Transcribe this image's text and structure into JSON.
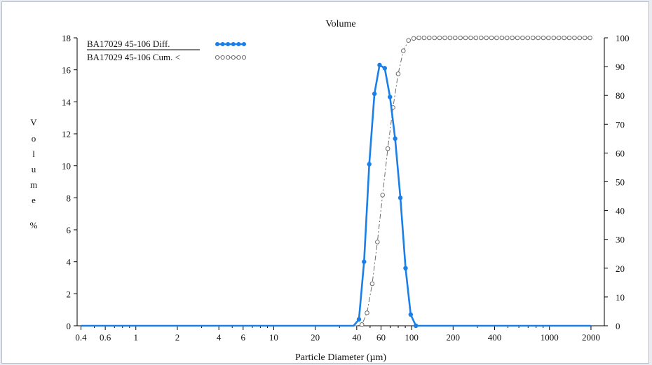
{
  "colors": {
    "diff_series": "#1a7fe6",
    "cum_series": "#6b6b6b",
    "axis": "#000000",
    "frame_border": "#b5bcc8",
    "background_outer": "#e9ecf1"
  },
  "chart_data": {
    "type": "line",
    "title": "Volume",
    "xlabel": "Particle Diameter (µm)",
    "ylabel": "Volume %",
    "x_scale": "log",
    "xlim": [
      0.375,
      2500
    ],
    "ylim": [
      0,
      18
    ],
    "y2lim": [
      0,
      100
    ],
    "x_ticks": [
      0.4,
      0.6,
      1,
      2,
      4,
      6,
      10,
      20,
      40,
      60,
      100,
      200,
      400,
      1000,
      2000
    ],
    "x_tick_labels": [
      "0.4",
      "0.6",
      "1",
      "2",
      "4",
      "6",
      "10",
      "20",
      "40",
      "60",
      "100",
      "200",
      "400",
      "1000",
      "2000"
    ],
    "y_ticks": [
      0,
      2,
      4,
      6,
      8,
      10,
      12,
      14,
      16,
      18
    ],
    "y2_ticks": [
      0,
      10,
      20,
      30,
      40,
      50,
      60,
      70,
      80,
      90,
      100
    ],
    "grid": false,
    "legend_position": "top-left",
    "series": [
      {
        "name": "BA17029 45-106 Diff.",
        "axis": "left",
        "style": "solid line with filled circles",
        "x": [
          0.4,
          38.0,
          41.5,
          45.2,
          49.3,
          53.8,
          58.6,
          63.9,
          69.7,
          76.0,
          82.9,
          90.4,
          98.5,
          107.4,
          117.1,
          2000
        ],
        "y": [
          0,
          0,
          0.4,
          4.0,
          10.1,
          14.5,
          16.3,
          16.1,
          14.3,
          11.7,
          8.0,
          3.6,
          0.7,
          0.0,
          0,
          0
        ],
        "markers_x": [
          41.5,
          45.2,
          49.3,
          53.8,
          58.6,
          63.9,
          69.7,
          76.0,
          82.9,
          90.4,
          98.5,
          107.4
        ]
      },
      {
        "name": "BA17029 45-106 Cum. <",
        "axis": "right",
        "style": "dash-dot line with open circles",
        "x": [
          0.4,
          40.0,
          43.6,
          47.5,
          51.8,
          56.5,
          61.6,
          67.2,
          73.3,
          79.9,
          87.1,
          95.0,
          103.6,
          113.0,
          123.2,
          134.3,
          146.5,
          159.7,
          174.2,
          189.9,
          207.1,
          225.8,
          246.2,
          268.5,
          292.8,
          319.3,
          348.2,
          379.7,
          414.0,
          451.5,
          492.3,
          536.9,
          585.5,
          638.4,
          696.2,
          759.2,
          827.9,
          902.8,
          984.5,
          1073.6,
          1170.7,
          1276.6,
          1392.1,
          1518.1,
          1655.4,
          1805.2,
          1968.6,
          2000
        ],
        "y": [
          0,
          0,
          0.4,
          4.5,
          14.6,
          29.1,
          45.4,
          61.5,
          75.8,
          87.5,
          95.5,
          99.1,
          99.8,
          100,
          100,
          100,
          100,
          100,
          100,
          100,
          100,
          100,
          100,
          100,
          100,
          100,
          100,
          100,
          100,
          100,
          100,
          100,
          100,
          100,
          100,
          100,
          100,
          100,
          100,
          100,
          100,
          100,
          100,
          100,
          100,
          100,
          100,
          100
        ],
        "markers_x": [
          43.6,
          47.5,
          51.8,
          56.5,
          61.6,
          67.2,
          73.3,
          79.9,
          87.1,
          95.0,
          103.6,
          113.0,
          123.2,
          134.3,
          146.5,
          159.7,
          174.2,
          189.9,
          207.1,
          225.8,
          246.2,
          268.5,
          292.8,
          319.3,
          348.2,
          379.7,
          414.0,
          451.5,
          492.3,
          536.9,
          585.5,
          638.4,
          696.2,
          759.2,
          827.9,
          902.8,
          984.5,
          1073.6,
          1170.7,
          1276.6,
          1392.1,
          1518.1,
          1655.4,
          1805.2,
          1968.6
        ]
      }
    ]
  }
}
